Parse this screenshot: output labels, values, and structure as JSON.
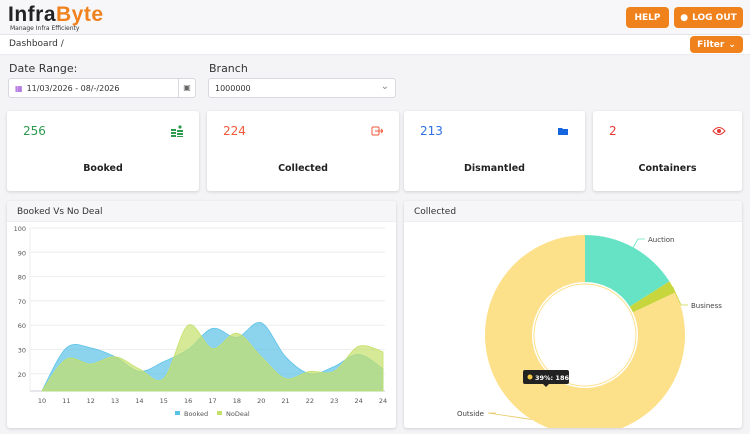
{
  "header": {
    "brand_left": "Infra",
    "brand_right": "Byte",
    "tagline": "Manage Infra Efficienty",
    "help": "HELP",
    "logout": "LOG OUT"
  },
  "breadcrumb": {
    "text": "Dashboard  /"
  },
  "filter_button": "Filter",
  "filters": {
    "date_label": "Date Range:",
    "date_value": "11/03/2026 - 08/-/2026",
    "branch_label": "Branch",
    "branch_value": "1000000"
  },
  "cards": [
    {
      "value": "256",
      "label": "Booked",
      "color": "#2e9a4e",
      "icon": "money-stack-icon"
    },
    {
      "value": "224",
      "label": "Collected",
      "color": "#f05a3c",
      "icon": "sign-out-icon"
    },
    {
      "value": "213",
      "label": "Dismantled",
      "color": "#2f6fe0",
      "icon": "folder-icon"
    },
    {
      "value": "2",
      "label": "Containers",
      "color": "#e53935",
      "icon": "eye-icon"
    }
  ],
  "chart_data": [
    {
      "type": "area",
      "title": "Booked Vs No Deal",
      "categories": [
        "10",
        "11",
        "12",
        "13",
        "14",
        "15",
        "16",
        "17",
        "18",
        "20",
        "21",
        "22",
        "23",
        "24",
        "24"
      ],
      "y_tick_labels": [
        "100",
        "90",
        "80",
        "70",
        "60",
        "30",
        "20"
      ],
      "series": [
        {
          "name": "Booked",
          "color": "#5bc2e7",
          "values": [
            13,
            32,
            32,
            27,
            21,
            25,
            30,
            56,
            45,
            61,
            27,
            20,
            23,
            28,
            22
          ]
        },
        {
          "name": "NoDeal",
          "color": "#c5e06a",
          "values": [
            13,
            26,
            24,
            27,
            22,
            18,
            60,
            31,
            50,
            27,
            18,
            21,
            21,
            34,
            29
          ]
        }
      ],
      "legend": "bottom"
    },
    {
      "type": "pie",
      "title": "Collected",
      "labels": [
        "Auction",
        "Business",
        "Outside"
      ],
      "values": [
        16,
        2,
        82
      ],
      "colors": [
        "#66e3c4",
        "#c6d63c",
        "#fde08a"
      ],
      "tooltip": "39%: 186"
    }
  ]
}
